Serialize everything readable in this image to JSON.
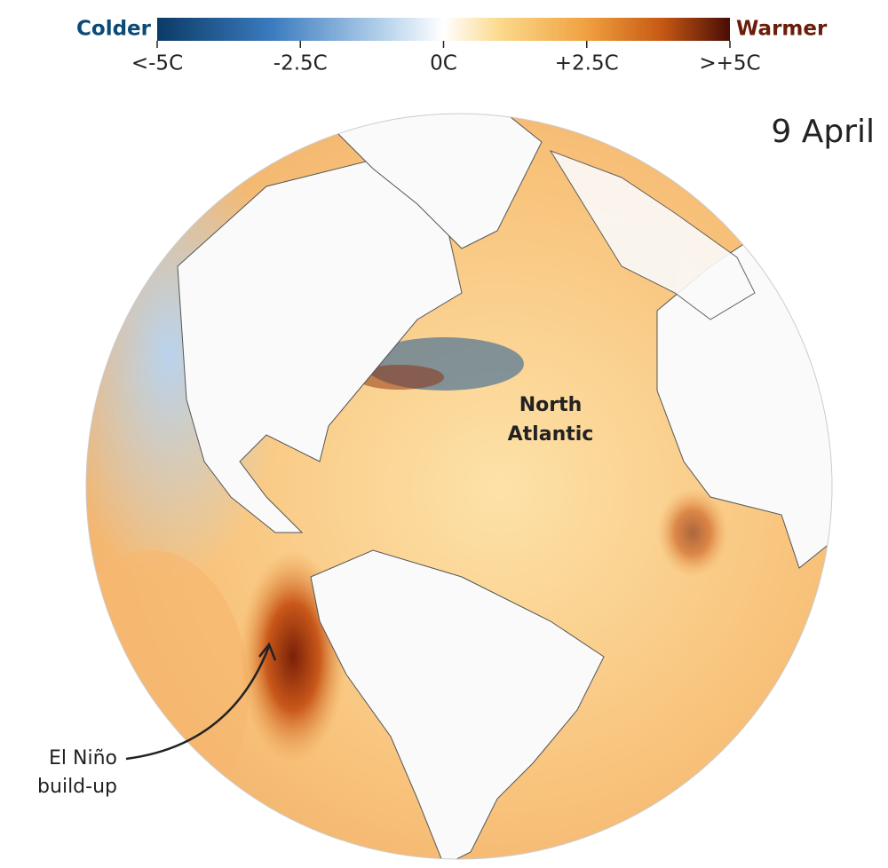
{
  "legend": {
    "left_label": "Colder",
    "right_label": "Warmer",
    "ticks": [
      {
        "value": -5,
        "label": "<-5C"
      },
      {
        "value": -2.5,
        "label": "-2.5C"
      },
      {
        "value": 0,
        "label": "0C"
      },
      {
        "value": 2.5,
        "label": "+2.5C"
      },
      {
        "value": 5,
        "label": ">+5C"
      }
    ]
  },
  "date": "9 April",
  "annotations": [
    {
      "lines": [
        "North",
        "Atlantic"
      ]
    },
    {
      "lines": [
        "El Niño",
        "build-up"
      ]
    }
  ]
}
